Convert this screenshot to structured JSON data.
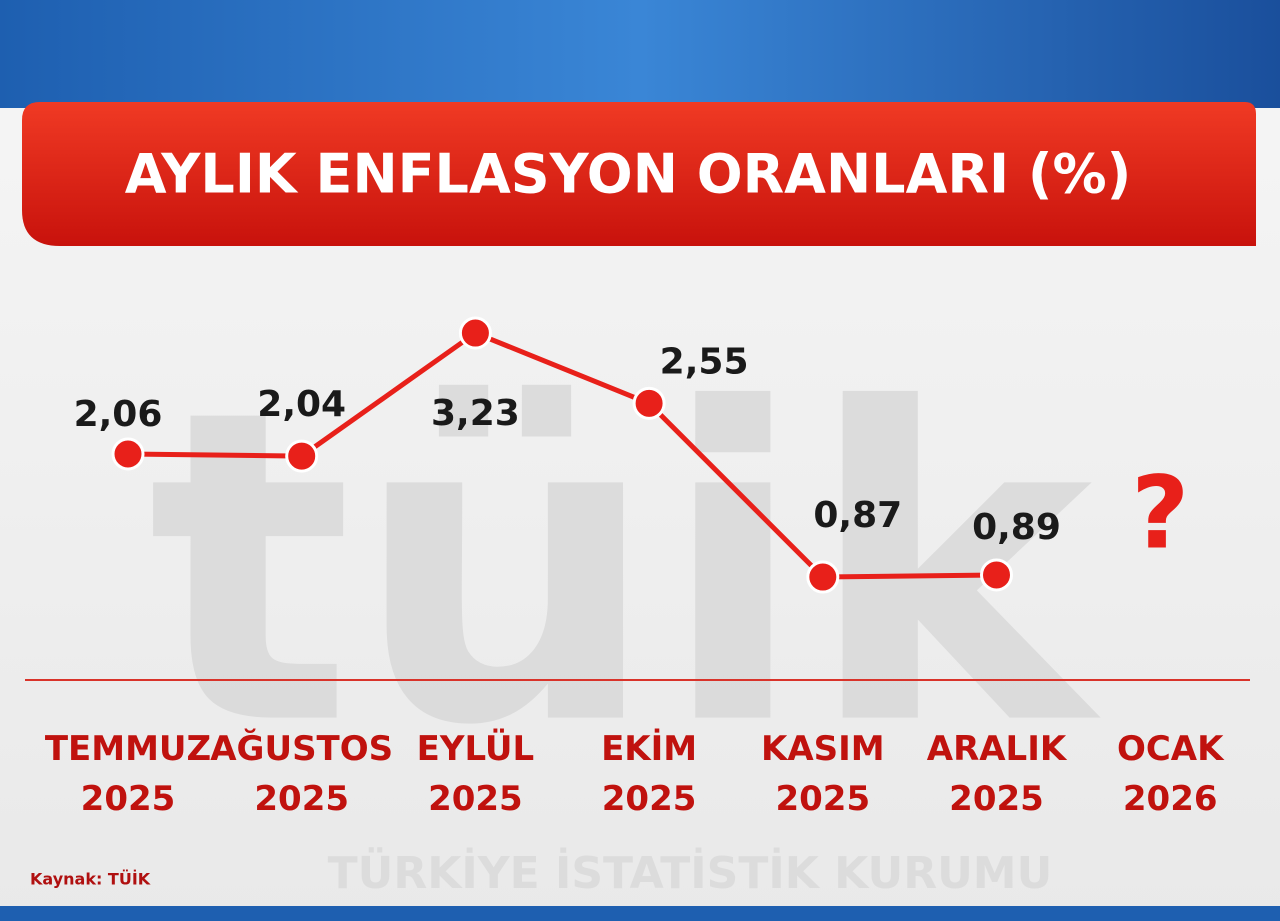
{
  "chart_data": {
    "type": "line",
    "title": "AYLIK ENFLASYON ORANLARI (%)",
    "categories": [
      "TEMMUZ 2025",
      "AĞUSTOS 2025",
      "EYLÜL 2025",
      "EKİM 2025",
      "KASIM 2025",
      "ARALIK 2025",
      "OCAK 2026"
    ],
    "series": [
      {
        "name": "Aylık enflasyon",
        "color": "#e8201a",
        "values": [
          2.06,
          2.04,
          3.23,
          2.55,
          0.87,
          0.89,
          null
        ],
        "value_labels": [
          "2,06",
          "2,04",
          "3,23",
          "2,55",
          "0,87",
          "0,89",
          null
        ]
      }
    ],
    "annotation": "?",
    "source": "Kaynak: TÜİK",
    "watermark_logo": "tüik",
    "watermark": "TÜRKİYE İSTATİSTİK KURUMU"
  }
}
